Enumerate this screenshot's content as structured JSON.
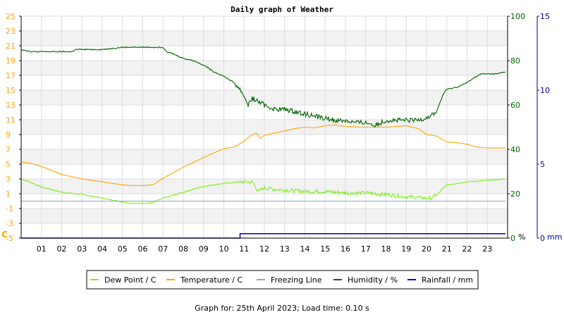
{
  "footer": "Graph for: 25th April 2023; Load time: 0.10 s",
  "chart_data": {
    "type": "line",
    "title": "Daily graph of Weather",
    "x_ticks": [
      "01",
      "02",
      "03",
      "04",
      "05",
      "06",
      "07",
      "08",
      "09",
      "10",
      "11",
      "12",
      "13",
      "14",
      "15",
      "16",
      "17",
      "18",
      "19",
      "20",
      "21",
      "22",
      "23"
    ],
    "x_range": [
      0,
      24
    ],
    "grid": true,
    "legend_position": "bottom",
    "axes": {
      "temp": {
        "label": "C",
        "range": [
          -5,
          25
        ],
        "ticks": [
          -5,
          -3,
          -1,
          1,
          3,
          5,
          7,
          9,
          11,
          13,
          15,
          17,
          19,
          21,
          23,
          25
        ],
        "color": "#ffa500",
        "side": "left"
      },
      "humidity": {
        "label": "%",
        "range": [
          0,
          100
        ],
        "ticks": [
          0,
          20,
          40,
          60,
          80,
          100
        ],
        "color": "#006400",
        "side": "right"
      },
      "rain": {
        "label": "mm",
        "range": [
          0,
          15
        ],
        "ticks": [
          0,
          5,
          10,
          15
        ],
        "color": "#000099",
        "side": "right"
      }
    },
    "series": [
      {
        "name": "Dew Point / C",
        "color": "#80ee20",
        "axis": "temp",
        "noisy": true,
        "x": [
          0,
          0.5,
          1,
          2,
          3,
          4,
          5,
          5.5,
          6,
          6.5,
          7,
          8,
          9,
          10,
          10.4,
          10.8,
          11,
          11.4,
          11.7,
          12,
          12.5,
          13,
          14,
          15,
          16,
          17,
          18,
          19,
          19.6,
          20,
          20.3,
          20.6,
          21,
          22,
          23,
          23.9
        ],
        "y": [
          3,
          2.5,
          1.9,
          1.2,
          0.9,
          0.4,
          -0.1,
          -0.3,
          -0.3,
          -0.2,
          0.4,
          1.2,
          2,
          2.4,
          2.5,
          2.6,
          2.6,
          2.6,
          1.3,
          1.8,
          1.6,
          1.5,
          1.3,
          1.3,
          1.1,
          1.1,
          0.9,
          0.6,
          0.5,
          0.4,
          0.5,
          1.1,
          2.2,
          2.6,
          2.8,
          3
        ]
      },
      {
        "name": "Temperature / C",
        "color": "#ffa500",
        "axis": "temp",
        "noisy": false,
        "x": [
          0,
          0.5,
          1,
          2,
          3,
          4,
          5,
          5.5,
          6,
          6.5,
          7,
          8,
          9,
          10,
          10.5,
          11,
          11.3,
          11.6,
          11.8,
          12,
          12.5,
          13,
          13.5,
          14,
          14.5,
          15,
          15.5,
          16,
          17,
          18,
          19,
          19.6,
          20,
          20.5,
          21,
          21.5,
          22,
          22.5,
          23,
          23.9
        ],
        "y": [
          5.3,
          5.1,
          4.7,
          3.6,
          3,
          2.6,
          2.2,
          2.1,
          2.1,
          2.2,
          3.1,
          4.6,
          5.9,
          7.1,
          7.3,
          8.1,
          8.8,
          9.2,
          8.5,
          8.9,
          9.2,
          9.5,
          9.8,
          10,
          9.9,
          10.2,
          10.3,
          10.1,
          10,
          10,
          10.2,
          9.8,
          9,
          8.8,
          8,
          7.9,
          7.7,
          7.3,
          7.2,
          7.2
        ]
      },
      {
        "name": "Freezing Line",
        "color": "#87a8c0",
        "axis": "temp",
        "noisy": false,
        "x": [
          0,
          23.9
        ],
        "y": [
          0,
          0
        ]
      },
      {
        "name": "Humidity / %",
        "color": "#006400",
        "axis": "humidity",
        "noisy": true,
        "x": [
          0,
          0.5,
          0.7,
          1.4,
          1.7,
          2.5,
          2.7,
          4,
          5,
          5.5,
          6,
          6.5,
          6.8,
          7,
          7.2,
          7.5,
          8,
          8.5,
          9,
          9.5,
          10,
          10.5,
          10.8,
          11,
          11.2,
          11.4,
          11.6,
          12,
          12.5,
          13,
          13.5,
          14,
          14.5,
          15,
          15.5,
          16,
          16.5,
          17,
          17.5,
          18,
          18.5,
          19,
          19.5,
          19.9,
          20.2,
          20.5,
          20.7,
          20.9,
          21,
          21.5,
          22,
          22.3,
          22.7,
          23,
          23.5,
          23.9
        ],
        "y": [
          85,
          84,
          84,
          84,
          84,
          84,
          85,
          85,
          86,
          86,
          86,
          86,
          86,
          86,
          84,
          83,
          81,
          80,
          78,
          75,
          73,
          70,
          67,
          64,
          60,
          63,
          62,
          60,
          58,
          58,
          57,
          56,
          55,
          54,
          53,
          53,
          52,
          52,
          51,
          53,
          53,
          53,
          53,
          54,
          55,
          57,
          62,
          66,
          67,
          68,
          70,
          72,
          74,
          74,
          74,
          75
        ]
      },
      {
        "name": "Rainfall / mm",
        "color": "#0000bb",
        "axis": "rain",
        "noisy": false,
        "step": true,
        "x": [
          0,
          10.8,
          10.8,
          23.9
        ],
        "y": [
          0,
          0,
          0.3,
          0.3
        ]
      }
    ]
  }
}
